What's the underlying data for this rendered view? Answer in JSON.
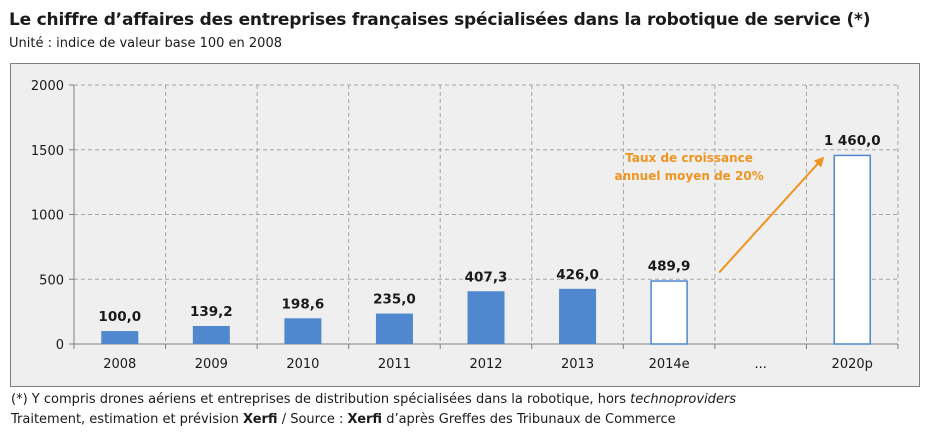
{
  "header": {
    "title": "Le chiffre d’affaires des entreprises françaises spécialisées dans la robotique de service (*)",
    "subtitle": "Unité : indice de valeur base 100 en 2008"
  },
  "footnotes": {
    "line1_text": "(*) Y compris drones aériens et entreprises de distribution spécialisées dans la robotique, hors ",
    "line1_italic": "technoproviders",
    "line2_a": "Traitement, estimation et prévision ",
    "line2_b": "Xerfi",
    "line2_c": " / Source : ",
    "line2_d": "Xerfi",
    "line2_e": " d’après Greffes des Tribunaux de Commerce"
  },
  "colors": {
    "bar_actual": "#4f88cf",
    "bar_forecast_fill": "#ffffff",
    "bar_forecast_stroke": "#4f88cf",
    "annotation": "#f0941f",
    "plot_bg": "#efefef",
    "grid": "#a6a6a6"
  },
  "chart_data": {
    "type": "bar",
    "title": "Le chiffre d’affaires des entreprises françaises spécialisées dans la robotique de service (*)",
    "subtitle": "Unité : indice de valeur base 100 en 2008",
    "categories": [
      "2008",
      "2009",
      "2010",
      "2011",
      "2012",
      "2013",
      "2014e",
      "...",
      "2020p"
    ],
    "values": [
      100.0,
      139.2,
      198.6,
      235.0,
      407.3,
      426.0,
      489.9,
      null,
      1460.0
    ],
    "value_labels": [
      "100,0",
      "139,2",
      "198,6",
      "235,0",
      "407,3",
      "426,0",
      "489,9",
      "",
      "1 460,0"
    ],
    "forecast": [
      false,
      false,
      false,
      false,
      false,
      false,
      true,
      false,
      true
    ],
    "ylim": [
      0,
      2000
    ],
    "yticks": [
      0,
      500,
      1000,
      1500,
      2000
    ],
    "ytick_labels": [
      "0",
      "500",
      "1000",
      "1500",
      "2000"
    ],
    "grid": true,
    "legend": "none",
    "annotation": {
      "lines": [
        "Taux de croissance",
        "annuel moyen de 20%"
      ],
      "arrow_from_category": "2014e",
      "arrow_to_category": "2020p"
    }
  }
}
